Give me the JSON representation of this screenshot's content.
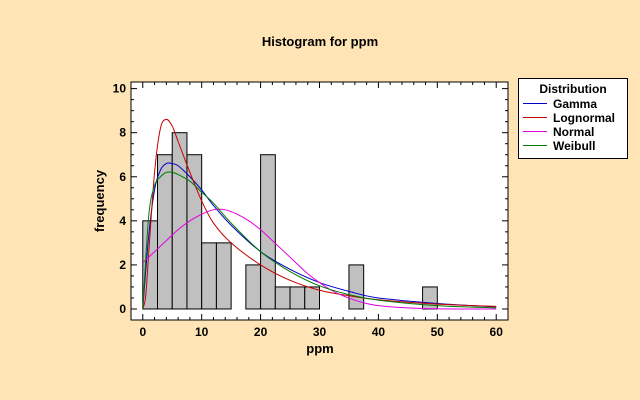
{
  "chart_data": {
    "type": "bar",
    "title": "Histogram for ppm",
    "xlabel": "ppm",
    "ylabel": "frequency",
    "xlim": [
      -2,
      62
    ],
    "ylim": [
      -0.5,
      10.3
    ],
    "x_ticks": [
      0,
      10,
      20,
      30,
      40,
      50,
      60
    ],
    "y_ticks": [
      0,
      2,
      4,
      6,
      8,
      10
    ],
    "bin_width": 2.5,
    "bins": [
      {
        "start": 0,
        "count": 4
      },
      {
        "start": 2.5,
        "count": 7
      },
      {
        "start": 5,
        "count": 8
      },
      {
        "start": 7.5,
        "count": 7
      },
      {
        "start": 10,
        "count": 3
      },
      {
        "start": 12.5,
        "count": 3
      },
      {
        "start": 15,
        "count": 0
      },
      {
        "start": 17.5,
        "count": 2
      },
      {
        "start": 20,
        "count": 7
      },
      {
        "start": 22.5,
        "count": 1
      },
      {
        "start": 25,
        "count": 1
      },
      {
        "start": 27.5,
        "count": 1
      },
      {
        "start": 30,
        "count": 0
      },
      {
        "start": 32.5,
        "count": 0
      },
      {
        "start": 35,
        "count": 2
      },
      {
        "start": 37.5,
        "count": 0
      },
      {
        "start": 40,
        "count": 0
      },
      {
        "start": 42.5,
        "count": 0
      },
      {
        "start": 45,
        "count": 0
      },
      {
        "start": 47.5,
        "count": 1
      }
    ],
    "bar_color": "#C0C0C0",
    "fits": [
      {
        "name": "Gamma",
        "color": "#0000C8",
        "x": [
          0,
          1,
          2,
          3,
          4,
          5,
          6,
          8,
          10,
          12,
          15,
          20,
          25,
          30,
          35,
          40,
          50,
          60
        ],
        "y": [
          0,
          3.3,
          5.4,
          6.3,
          6.6,
          6.6,
          6.5,
          6.0,
          5.4,
          4.7,
          3.8,
          2.6,
          1.8,
          1.2,
          0.8,
          0.5,
          0.25,
          0.1
        ]
      },
      {
        "name": "Lognormal",
        "color": "#C80000",
        "x": [
          0,
          0.5,
          1,
          2,
          3,
          4,
          5,
          6,
          8,
          10,
          12,
          15,
          20,
          25,
          30,
          35,
          40,
          50,
          60
        ],
        "y": [
          0,
          0.6,
          2.5,
          6.2,
          8.2,
          8.6,
          8.3,
          7.6,
          6.2,
          4.9,
          3.9,
          3.0,
          2.0,
          1.3,
          0.85,
          0.6,
          0.42,
          0.22,
          0.12
        ]
      },
      {
        "name": "Normal",
        "color": "#E000E0",
        "x": [
          0,
          2,
          4,
          6,
          8,
          10,
          12,
          14,
          16,
          18,
          20,
          22,
          24,
          26,
          28,
          30,
          32,
          34,
          36,
          38,
          40,
          45,
          50,
          55,
          60
        ],
        "y": [
          2.1,
          2.6,
          3.1,
          3.6,
          4.0,
          4.3,
          4.5,
          4.5,
          4.3,
          4.0,
          3.6,
          3.1,
          2.6,
          2.1,
          1.6,
          1.2,
          0.85,
          0.6,
          0.4,
          0.25,
          0.15,
          0.05,
          0.01,
          0,
          0
        ]
      },
      {
        "name": "Weibull",
        "color": "#007800",
        "x": [
          0,
          1,
          2,
          3,
          4,
          5,
          6,
          8,
          10,
          12,
          15,
          20,
          25,
          30,
          35,
          40,
          50,
          60
        ],
        "y": [
          0,
          4.2,
          5.6,
          6.0,
          6.2,
          6.2,
          6.1,
          5.8,
          5.3,
          4.8,
          3.9,
          2.6,
          1.7,
          1.05,
          0.65,
          0.4,
          0.15,
          0.05
        ]
      }
    ],
    "legend": {
      "title": "Distribution",
      "placement": "right"
    },
    "grid": false
  }
}
